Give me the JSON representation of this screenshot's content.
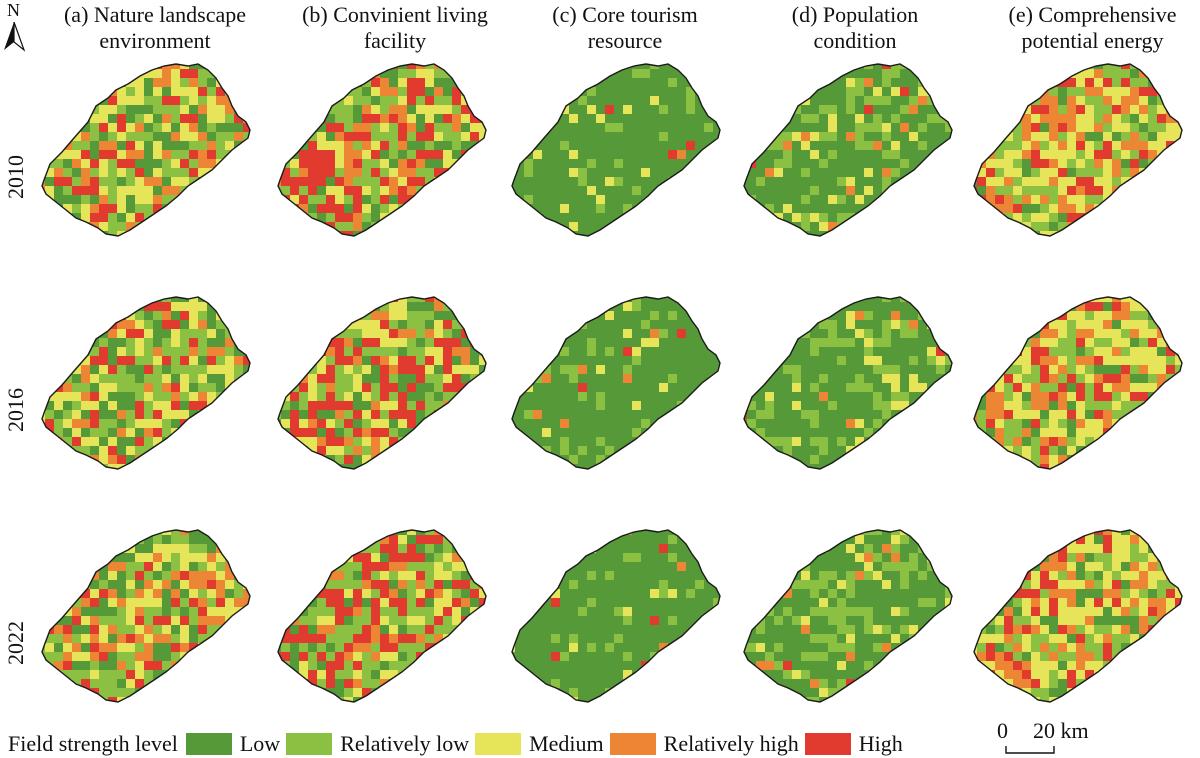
{
  "columns": [
    {
      "letter": "(a)",
      "line1": "(a) Nature landscape",
      "line2": "environment"
    },
    {
      "letter": "(b)",
      "line1": "(b) Convinient living",
      "line2": "facility"
    },
    {
      "letter": "(c)",
      "line1": "(c) Core tourism",
      "line2": "resource"
    },
    {
      "letter": "(d)",
      "line1": "(d) Population",
      "line2": "condition"
    },
    {
      "letter": "(e)",
      "line1": "(e) Comprehensive",
      "line2": "potential energy"
    }
  ],
  "years": [
    "2010",
    "2016",
    "2022"
  ],
  "north_arrow": {
    "letter": "N",
    "icon": "north-arrow-icon"
  },
  "legend": {
    "title": "Field strength level",
    "levels": [
      {
        "label": "Low",
        "color": "#559938"
      },
      {
        "label": "Relatively low",
        "color": "#8cc043"
      },
      {
        "label": "Medium",
        "color": "#e6e55a"
      },
      {
        "label": "Relatively high",
        "color": "#ec8534"
      },
      {
        "label": "High",
        "color": "#e13b30"
      }
    ]
  },
  "scale_bar": {
    "zero": "0",
    "distance": "20 km"
  },
  "map_style": {
    "panels": [
      {
        "weights": [
          0.22,
          0.28,
          0.24,
          0.14,
          0.12
        ]
      },
      {
        "weights": [
          0.18,
          0.24,
          0.16,
          0.12,
          0.3
        ]
      },
      {
        "weights": [
          0.82,
          0.12,
          0.04,
          0.01,
          0.01
        ]
      },
      {
        "weights": [
          0.62,
          0.24,
          0.1,
          0.03,
          0.01
        ]
      },
      {
        "weights": [
          0.1,
          0.26,
          0.3,
          0.2,
          0.14
        ]
      }
    ],
    "outline_color": "#1a1a1a"
  }
}
